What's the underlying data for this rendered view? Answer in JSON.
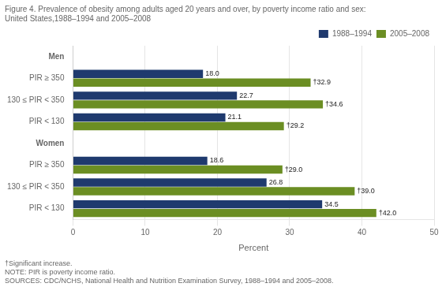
{
  "chart_data": {
    "type": "bar",
    "orientation": "horizontal",
    "title": [
      "Figure 4. Prevalence of obesity among adults aged 20 years and over, by poverty income ratio and sex:",
      "United States,1988–1994 and 2005–2008"
    ],
    "footnotes": [
      "†Significant increase.",
      "NOTE: PIR is poverty income ratio.",
      "SOURCES: CDC/NCHS, National Health and Nutrition Examination Survey, 1988–1994 and 2005–2008."
    ],
    "xlabel": "Percent",
    "categories": [
      "Men",
      "PIR ≥ 350",
      "130 ≤ PIR < 350",
      "PIR < 130",
      "Women",
      "PIR ≥ 350",
      "130 ≤ PIR < 350",
      "PIR < 130"
    ],
    "series": [
      {
        "name": "1988–1994",
        "color": "#1f3a6e",
        "values": [
          null,
          18.0,
          22.7,
          21.1,
          null,
          18.6,
          26.8,
          34.5
        ],
        "value_labels": [
          null,
          "18.0",
          "22.7",
          "21.1",
          null,
          "18.6",
          "26.8",
          "34.5"
        ]
      },
      {
        "name": "2005–2008",
        "color": "#6b8e23",
        "values": [
          null,
          32.9,
          34.6,
          29.2,
          null,
          29.0,
          39.0,
          42.0
        ],
        "value_labels": [
          null,
          "†32.9",
          "†34.6",
          "†29.2",
          null,
          "†29.0",
          "†39.0",
          "†42.0"
        ]
      }
    ],
    "xlim": [
      0,
      50
    ],
    "xticks": [
      0,
      10,
      20,
      30,
      40,
      50
    ],
    "grid": true,
    "legend": "upper right",
    "data_labels": true
  }
}
